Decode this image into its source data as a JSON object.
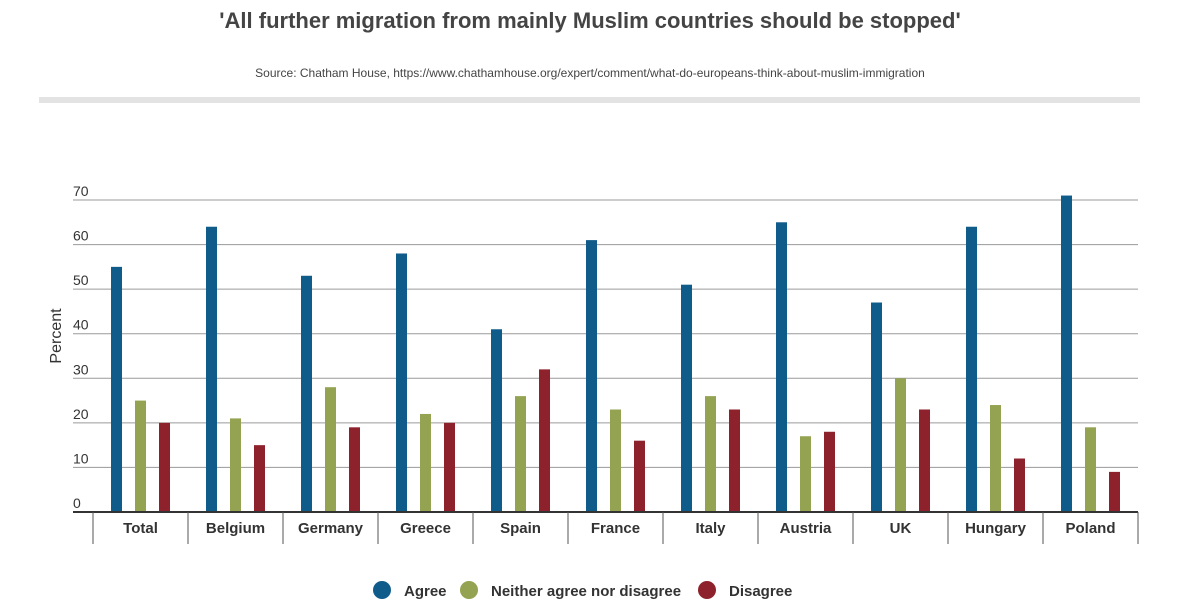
{
  "title": "'All further migration from mainly Muslim countries should be stopped'",
  "source": "Source: Chatham House, https://www.chathamhouse.org/expert/comment/what-do-europeans-think-about-muslim-immigration",
  "chart_data": {
    "type": "bar",
    "title": "'All further migration from mainly Muslim countries should be stopped'",
    "xlabel": "",
    "ylabel": "Percent",
    "ylim": [
      0,
      70
    ],
    "yticks": [
      0,
      10,
      20,
      30,
      40,
      50,
      60,
      70
    ],
    "grid": true,
    "legend_position": "bottom",
    "categories": [
      "Total",
      "Belgium",
      "Germany",
      "Greece",
      "Spain",
      "France",
      "Italy",
      "Austria",
      "UK",
      "Hungary",
      "Poland"
    ],
    "series": [
      {
        "name": "Agree",
        "color": "#0f5c8a",
        "values": [
          55,
          64,
          53,
          58,
          41,
          61,
          51,
          65,
          47,
          64,
          71
        ]
      },
      {
        "name": "Neither agree nor disagree",
        "color": "#93a351",
        "values": [
          25,
          21,
          28,
          22,
          26,
          23,
          26,
          17,
          30,
          24,
          19
        ]
      },
      {
        "name": "Disagree",
        "color": "#8e222c",
        "values": [
          20,
          15,
          19,
          20,
          32,
          16,
          23,
          18,
          23,
          12,
          9
        ]
      }
    ]
  }
}
